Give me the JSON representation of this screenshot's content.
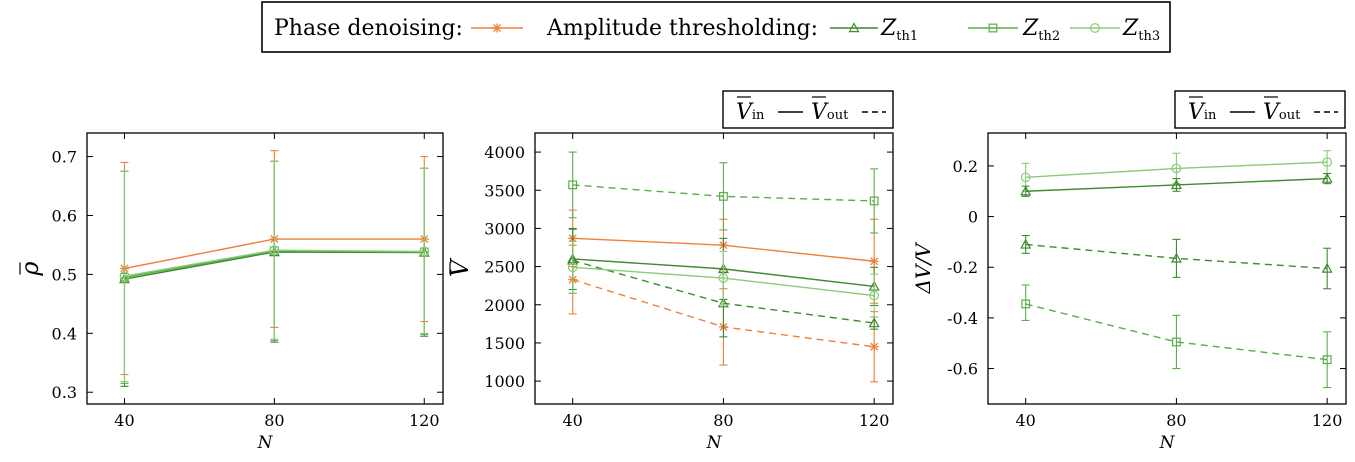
{
  "colors": {
    "phase": "#F07F3C",
    "zth1": "#3E8A2E",
    "zth2": "#5AAE4A",
    "zth3": "#8CCB7A"
  },
  "legend": {
    "phase_label": "Phase denoising:",
    "amp_label": "Amplitude thresholding:",
    "zth1": "Z",
    "zth1_sub": "th1",
    "zth2": "Z",
    "zth2_sub": "th2",
    "zth3": "Z",
    "zth3_sub": "th3"
  },
  "inout_legend": {
    "v": "V",
    "in_sub": "in",
    "out_sub": "out"
  },
  "chart_data": [
    {
      "type": "line",
      "xlabel": "N",
      "ylabel": "ρ",
      "x": [
        40,
        80,
        120
      ],
      "xlim": [
        30,
        125
      ],
      "ylim": [
        0.28,
        0.74
      ],
      "yticks": [
        0.3,
        0.4,
        0.5,
        0.6,
        0.7
      ],
      "ytick_labels": [
        "0.3",
        "0.4",
        "0.5",
        "0.6",
        "0.7"
      ],
      "xticks": [
        40,
        80,
        120
      ],
      "xtick_labels": [
        "40",
        "80",
        "120"
      ],
      "grid": false,
      "series": [
        {
          "key": "phase",
          "values": [
            0.51,
            0.56,
            0.56
          ],
          "lo": [
            0.33,
            0.41,
            0.42
          ],
          "hi": [
            0.69,
            0.71,
            0.7
          ]
        },
        {
          "key": "zth1",
          "values": [
            0.492,
            0.538,
            0.537
          ],
          "lo": [
            0.31,
            0.385,
            0.395
          ],
          "hi": [
            0.675,
            0.692,
            0.68
          ]
        },
        {
          "key": "zth2",
          "values": [
            0.495,
            0.54,
            0.538
          ],
          "lo": [
            0.315,
            0.388,
            0.398
          ],
          "hi": [
            0.675,
            0.692,
            0.68
          ]
        },
        {
          "key": "zth3",
          "values": [
            0.497,
            0.541,
            0.539
          ],
          "lo": [
            0.318,
            0.39,
            0.4
          ],
          "hi": [
            0.675,
            0.692,
            0.68
          ]
        }
      ]
    },
    {
      "type": "line",
      "xlabel": "N",
      "ylabel": "V",
      "x": [
        40,
        80,
        120
      ],
      "xlim": [
        30,
        125
      ],
      "ylim": [
        700,
        4250
      ],
      "yticks": [
        1000,
        1500,
        2000,
        2500,
        3000,
        3500,
        4000
      ],
      "ytick_labels": [
        "1000",
        "1500",
        "2000",
        "2500",
        "3000",
        "3500",
        "4000"
      ],
      "xticks": [
        40,
        80,
        120
      ],
      "xtick_labels": [
        "40",
        "80",
        "120"
      ],
      "grid": false,
      "series": [
        {
          "key": "phase",
          "style": "in",
          "values": [
            2870,
            2780,
            2570
          ],
          "lo": [
            2500,
            2430,
            2020
          ],
          "hi": [
            3240,
            3120,
            3120
          ]
        },
        {
          "key": "phase",
          "style": "out",
          "values": [
            2330,
            1710,
            1450
          ],
          "lo": [
            1880,
            1210,
            990
          ],
          "hi": [
            2780,
            2210,
            1910
          ]
        },
        {
          "key": "zth1",
          "style": "in",
          "values": [
            2600,
            2470,
            2240
          ],
          "lo": [
            2200,
            2070,
            1990
          ],
          "hi": [
            3000,
            2870,
            2490
          ]
        },
        {
          "key": "zth1",
          "style": "out",
          "values": [
            2580,
            2020,
            1760
          ],
          "lo": [
            2150,
            1580,
            1680
          ],
          "hi": [
            2990,
            2460,
            1840
          ]
        },
        {
          "key": "zth2",
          "style": "out",
          "values": [
            3570,
            3420,
            3360
          ],
          "lo": [
            3140,
            2980,
            2940
          ],
          "hi": [
            4000,
            3860,
            3780
          ]
        },
        {
          "key": "zth3",
          "style": "in",
          "values": [
            2490,
            2350,
            2120
          ],
          "lo": [
            2150,
            2000,
            1840
          ],
          "hi": [
            2830,
            2700,
            2400
          ]
        }
      ]
    },
    {
      "type": "line",
      "xlabel": "N",
      "ylabel": "ΔV/V",
      "x": [
        40,
        80,
        120
      ],
      "xlim": [
        30,
        125
      ],
      "ylim": [
        -0.74,
        0.33
      ],
      "yticks": [
        -0.6,
        -0.4,
        -0.2,
        0,
        0.2
      ],
      "ytick_labels": [
        "-0.6",
        "-0.4",
        "-0.2",
        "0",
        "0.2"
      ],
      "xticks": [
        40,
        80,
        120
      ],
      "xtick_labels": [
        "40",
        "80",
        "120"
      ],
      "grid": false,
      "series": [
        {
          "key": "zth3",
          "style": "in",
          "values": [
            0.155,
            0.19,
            0.215
          ],
          "lo": [
            0.1,
            0.13,
            0.17
          ],
          "hi": [
            0.21,
            0.25,
            0.26
          ]
        },
        {
          "key": "zth1",
          "style": "in",
          "values": [
            0.1,
            0.125,
            0.15
          ],
          "lo": [
            0.08,
            0.1,
            0.13
          ],
          "hi": [
            0.12,
            0.15,
            0.17
          ]
        },
        {
          "key": "zth1",
          "style": "out",
          "values": [
            -0.11,
            -0.165,
            -0.205
          ],
          "lo": [
            -0.145,
            -0.24,
            -0.285
          ],
          "hi": [
            -0.075,
            -0.09,
            -0.125
          ]
        },
        {
          "key": "zth2",
          "style": "out",
          "values": [
            -0.345,
            -0.495,
            -0.565
          ],
          "lo": [
            -0.41,
            -0.6,
            -0.675
          ],
          "hi": [
            -0.27,
            -0.39,
            -0.455
          ]
        }
      ]
    }
  ]
}
